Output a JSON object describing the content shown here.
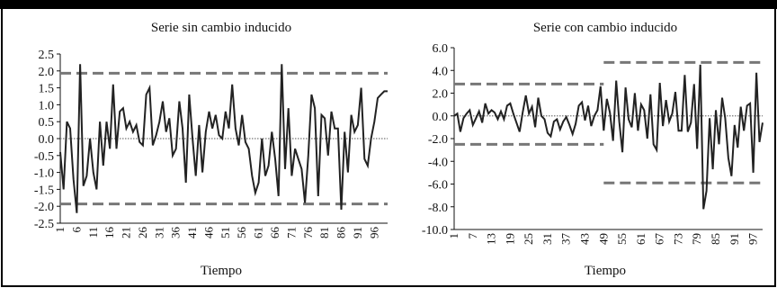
{
  "chart_data": [
    {
      "type": "line",
      "title": "Serie sin cambio inducido",
      "xlabel": "Tiempo",
      "ylabel": "",
      "ylim": [
        -2.5,
        2.5
      ],
      "yticks": [
        "2.5",
        "2.0",
        "1.5",
        "1.0",
        "0.5",
        "0.0",
        "-0.5",
        "-1.0",
        "-1.5",
        "-2.0",
        "-2.5"
      ],
      "xticks": [
        "1",
        "6",
        "11",
        "16",
        "21",
        "26",
        "31",
        "36",
        "41",
        "46",
        "51",
        "56",
        "61",
        "66",
        "71",
        "76",
        "81",
        "86",
        "91",
        "96"
      ],
      "grid": false,
      "series": [
        {
          "color": "#222222",
          "x": [
            1,
            2,
            3,
            4,
            5,
            6,
            7,
            8,
            9,
            10,
            11,
            12,
            13,
            14,
            15,
            16,
            17,
            18,
            19,
            20,
            21,
            22,
            23,
            24,
            25,
            26,
            27,
            28,
            29,
            30,
            31,
            32,
            33,
            34,
            35,
            36,
            37,
            38,
            39,
            40,
            41,
            42,
            43,
            44,
            45,
            46,
            47,
            48,
            49,
            50,
            51,
            52,
            53,
            54,
            55,
            56,
            57,
            58,
            59,
            60,
            61,
            62,
            63,
            64,
            65,
            66,
            67,
            68,
            69,
            70,
            71,
            72,
            73,
            74,
            75,
            76,
            77,
            78,
            79,
            80,
            81,
            82,
            83,
            84,
            85,
            86,
            87,
            88,
            89,
            90,
            91,
            92,
            93,
            94,
            95,
            96,
            97,
            98,
            99,
            100
          ],
          "y": [
            -0.4,
            -1.5,
            0.5,
            0.3,
            -1.2,
            -2.2,
            2.2,
            -1.4,
            -1.1,
            0.0,
            -1.0,
            -1.5,
            0.5,
            -0.8,
            0.5,
            -0.3,
            1.6,
            -0.3,
            0.8,
            0.9,
            0.3,
            0.5,
            0.2,
            0.4,
            -0.1,
            -0.2,
            1.3,
            1.5,
            -0.2,
            0.1,
            0.5,
            1.1,
            0.2,
            0.6,
            -0.5,
            -0.3,
            1.1,
            0.3,
            -1.3,
            1.3,
            0.0,
            -1.1,
            0.4,
            -1.0,
            0.2,
            0.8,
            0.3,
            0.7,
            0.1,
            0.0,
            0.8,
            0.3,
            1.6,
            0.3,
            -0.2,
            0.7,
            -0.1,
            -0.3,
            -1.1,
            -1.6,
            -1.3,
            0.0,
            -1.1,
            -0.8,
            0.2,
            -0.6,
            -1.7,
            2.2,
            -0.9,
            0.9,
            -1.1,
            -0.3,
            -0.6,
            -0.9,
            -1.9,
            -0.5,
            1.3,
            0.9,
            -1.7,
            0.7,
            0.6,
            -0.5,
            0.8,
            0.3,
            0.3,
            -2.1,
            0.2,
            -1.0,
            0.7,
            0.2,
            0.4,
            1.5,
            -0.6,
            -0.8,
            0.0,
            0.5,
            1.2,
            1.3,
            1.4,
            1.4
          ]
        }
      ],
      "reference_lines": [
        {
          "y": 0.0,
          "style": "dotted",
          "color": "#777777"
        },
        {
          "y": 1.93,
          "style": "dashed",
          "color": "#777777"
        },
        {
          "y": -1.93,
          "style": "dashed",
          "color": "#777777"
        }
      ]
    },
    {
      "type": "line",
      "title": "Serie con cambio inducido",
      "xlabel": "Tiempo",
      "ylabel": "",
      "ylim": [
        -10.0,
        6.0
      ],
      "yticks": [
        "6.0",
        "4.0",
        "2.0",
        "0.0",
        "-2.0",
        "-4.0",
        "-6.0",
        "-8.0",
        "-10.0"
      ],
      "xticks": [
        "1",
        "7",
        "13",
        "19",
        "25",
        "31",
        "37",
        "43",
        "49",
        "55",
        "61",
        "67",
        "73",
        "79",
        "85",
        "91",
        "97"
      ],
      "grid": false,
      "series": [
        {
          "color": "#222222",
          "x": [
            1,
            2,
            3,
            4,
            5,
            6,
            7,
            8,
            9,
            10,
            11,
            12,
            13,
            14,
            15,
            16,
            17,
            18,
            19,
            20,
            21,
            22,
            23,
            24,
            25,
            26,
            27,
            28,
            29,
            30,
            31,
            32,
            33,
            34,
            35,
            36,
            37,
            38,
            39,
            40,
            41,
            42,
            43,
            44,
            45,
            46,
            47,
            48,
            49,
            50,
            51,
            52,
            53,
            54,
            55,
            56,
            57,
            58,
            59,
            60,
            61,
            62,
            63,
            64,
            65,
            66,
            67,
            68,
            69,
            70,
            71,
            72,
            73,
            74,
            75,
            76,
            77,
            78,
            79,
            80,
            81,
            82,
            83,
            84,
            85,
            86,
            87,
            88,
            89,
            90,
            91,
            92,
            93,
            94,
            95,
            96,
            97,
            98,
            99,
            100
          ],
          "y": [
            0.0,
            0.2,
            -1.4,
            -0.2,
            0.2,
            0.5,
            -0.8,
            -0.2,
            0.4,
            -0.6,
            1.1,
            0.2,
            0.5,
            0.3,
            -0.3,
            0.4,
            -0.3,
            0.9,
            1.1,
            0.2,
            -0.6,
            -1.4,
            0.3,
            1.8,
            0.2,
            0.8,
            -1.0,
            1.6,
            0.0,
            -0.3,
            -1.5,
            -1.8,
            -0.5,
            -0.3,
            -1.2,
            -0.5,
            -0.1,
            -0.8,
            -1.6,
            -0.7,
            0.9,
            1.2,
            -0.4,
            0.9,
            -0.9,
            0.0,
            0.5,
            2.6,
            -1.3,
            1.5,
            0.3,
            -2.2,
            3.1,
            -0.5,
            -3.2,
            2.5,
            -0.3,
            -1.0,
            2.0,
            -1.3,
            1.0,
            0.5,
            -2.0,
            1.9,
            -2.5,
            -3.0,
            2.9,
            -0.9,
            1.4,
            -0.5,
            0.2,
            2.1,
            -1.3,
            -1.3,
            3.6,
            -1.4,
            -0.6,
            2.8,
            -2.9,
            4.5,
            -8.2,
            -6.6,
            -0.2,
            -4.7,
            0.5,
            -2.5,
            1.6,
            -0.2,
            -3.7,
            -5.3,
            -0.8,
            -2.8,
            0.8,
            -1.3,
            0.9,
            1.1,
            -5.0,
            3.8,
            -2.3,
            -0.6
          ]
        }
      ],
      "reference_lines": [
        {
          "y": 0.0,
          "style": "dotted",
          "color": "#777777"
        },
        {
          "y": 2.8,
          "style": "dashed",
          "color": "#777777",
          "x_from": 1,
          "x_to": 49
        },
        {
          "y": -2.5,
          "style": "dashed",
          "color": "#777777",
          "x_from": 1,
          "x_to": 49
        },
        {
          "y": 4.7,
          "style": "dashed",
          "color": "#777777",
          "x_from": 49,
          "x_to": 100
        },
        {
          "y": -5.9,
          "style": "dashed",
          "color": "#777777",
          "x_from": 49,
          "x_to": 100
        }
      ]
    }
  ]
}
